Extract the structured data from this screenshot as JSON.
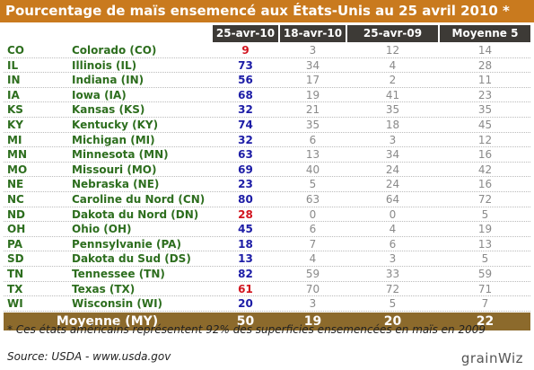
{
  "title": "Pourcentage de maïs ensemencé aux États-Unis au 25 avril 2010 *",
  "table": {
    "header": [
      "25-avr-10",
      "18-avr-10",
      "25-avr-09",
      "Moyenne 5"
    ],
    "rows": [
      [
        "CO",
        "Colorado (CO)",
        "9",
        "3",
        "12",
        "14"
      ],
      [
        "IL",
        "Illinois (IL)",
        "73",
        "34",
        "4",
        "28"
      ],
      [
        "IN",
        "Indiana (IN)",
        "56",
        "17",
        "2",
        "11"
      ],
      [
        "IA",
        "Iowa (IA)",
        "68",
        "19",
        "41",
        "23"
      ],
      [
        "KS",
        "Kansas (KS)",
        "32",
        "21",
        "35",
        "35"
      ],
      [
        "KY",
        "Kentucky (KY)",
        "74",
        "35",
        "18",
        "45"
      ],
      [
        "MI",
        "Michigan (MI)",
        "32",
        "6",
        "3",
        "12"
      ],
      [
        "MN",
        "Minnesota (MN)",
        "63",
        "13",
        "34",
        "16"
      ],
      [
        "MO",
        "Missouri (MO)",
        "69",
        "40",
        "24",
        "42"
      ],
      [
        "NE",
        "Nebraska (NE)",
        "23",
        "5",
        "24",
        "16"
      ],
      [
        "NC",
        "Caroline du Nord (CN)",
        "80",
        "63",
        "64",
        "72"
      ],
      [
        "ND",
        "Dakota du Nord (DN)",
        "28",
        "0",
        "0",
        "5"
      ],
      [
        "OH",
        "Ohio (OH)",
        "45",
        "6",
        "4",
        "19"
      ],
      [
        "PA",
        "Pennsylvanie (PA)",
        "18",
        "7",
        "6",
        "13"
      ],
      [
        "SD",
        "Dakota du Sud (DS)",
        "13",
        "4",
        "3",
        "5"
      ],
      [
        "TN",
        "Tennessee (TN)",
        "82",
        "59",
        "33",
        "59"
      ],
      [
        "TX",
        "Texas (TX)",
        "61",
        "70",
        "72",
        "71"
      ],
      [
        "WI",
        "Wisconsin (WI)",
        "20",
        "3",
        "5",
        "7"
      ]
    ],
    "current_colors": [
      "#d2141e",
      "#1c1ca6",
      "#1c1ca6",
      "#1c1ca6",
      "#1c1ca6",
      "#1c1ca6",
      "#1c1ca6",
      "#1c1ca6",
      "#1c1ca6",
      "#1c1ca6",
      "#1c1ca6",
      "#d2141e",
      "#1c1ca6",
      "#1c1ca6",
      "#1c1ca6",
      "#1c1ca6",
      "#d2141e",
      "#1c1ca6"
    ],
    "footer": [
      "Moyenne (MY)",
      "50",
      "19",
      "20",
      "22"
    ]
  },
  "note": "* Ces états américains représentent 92% des superficies ensemencées en maïs en 2009",
  "source": "Source: USDA - www.usda.gov",
  "logo": "grainWiz"
}
